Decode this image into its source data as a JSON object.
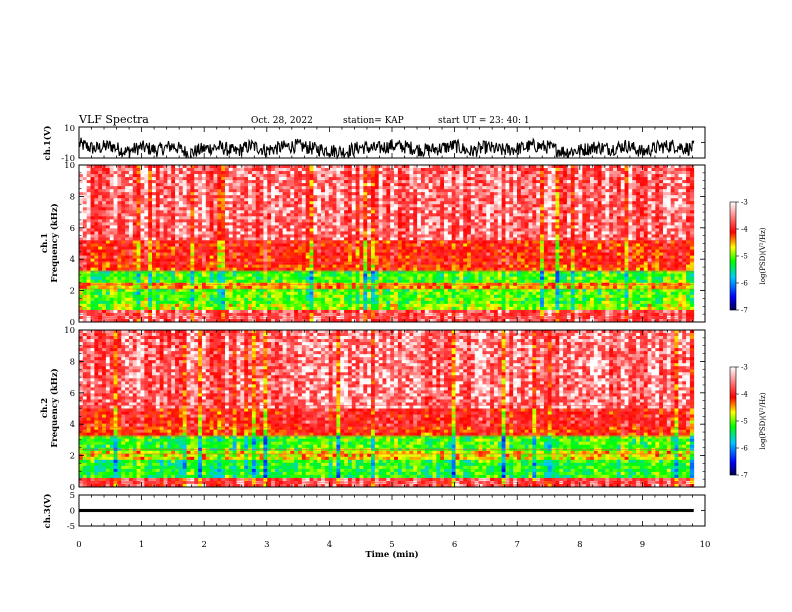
{
  "header": {
    "title": "VLF Spectra",
    "date": "Oct. 28, 2022",
    "station": "station= KAP",
    "start": "start UT =  23: 40: 1"
  },
  "chart_data": [
    {
      "type": "line",
      "panel": "ch1-waveform",
      "ylabel": "ch.1(V)",
      "ylim": [
        -10,
        10
      ],
      "yticks": [
        {
          "label": "10"
        },
        {
          "label": "-10"
        }
      ],
      "xlim": [
        0,
        10
      ],
      "series": [
        {
          "x": [
            0,
            0.25,
            0.5,
            0.75,
            1.0,
            1.25,
            1.5,
            1.75,
            2.0,
            2.25,
            2.5,
            2.75,
            3.0,
            3.25,
            3.5,
            3.75,
            4.0,
            4.25,
            4.5,
            4.75,
            5.0,
            5.25,
            5.5,
            5.75,
            6.0,
            6.25,
            6.5,
            6.75,
            7.0,
            7.25,
            7.5,
            7.75,
            8.0,
            8.25,
            8.5,
            8.75,
            9.0,
            9.25,
            9.5,
            9.75,
            9.82
          ],
          "y": [
            -1,
            -4,
            -2,
            -6,
            -3,
            -5,
            -2,
            -7,
            -4,
            -3,
            -6,
            -2,
            -5,
            -3,
            -2,
            -4,
            -5,
            -6,
            -3,
            -4,
            -2,
            -3,
            -5,
            -4,
            -2,
            -6,
            -3,
            -5,
            -4,
            -2,
            -3,
            -6,
            -5,
            -3,
            -4,
            -2,
            -6,
            -3,
            -2,
            -4,
            -3
          ]
        }
      ]
    },
    {
      "type": "heatmap",
      "panel": "ch1-spectrogram",
      "ylabel_top": "ch.1",
      "ylabel": "Frequency (kHz)",
      "ylim": [
        0,
        10
      ],
      "xlim": [
        0,
        10
      ],
      "yticks": [
        {
          "v": 0,
          "label": "0"
        },
        {
          "v": 2,
          "label": "2"
        },
        {
          "v": 4,
          "label": "4"
        },
        {
          "v": 6,
          "label": "6"
        },
        {
          "v": 8,
          "label": "8"
        },
        {
          "v": 10,
          "label": "10"
        }
      ],
      "data_end_min": 9.82,
      "bands": [
        {
          "from": 0,
          "to": 0.7,
          "level": -3.5
        },
        {
          "from": 0.7,
          "to": 1.2,
          "level": -4.8
        },
        {
          "from": 1.2,
          "to": 2.1,
          "level": -5.0
        },
        {
          "from": 2.1,
          "to": 2.5,
          "level": -4.4
        },
        {
          "from": 2.5,
          "to": 3.3,
          "level": -5.1
        },
        {
          "from": 3.3,
          "to": 3.7,
          "level": -4.0
        },
        {
          "from": 3.7,
          "to": 5.2,
          "level": -3.9
        },
        {
          "from": 5.2,
          "to": 10,
          "level": -3.4
        }
      ],
      "colorbar": {
        "label": "log(PSD)(V²/Hz)",
        "range": [
          -7,
          -3
        ],
        "ticks": [
          {
            "v": -3,
            "label": "-3"
          },
          {
            "v": -4,
            "label": "-4"
          },
          {
            "v": -5,
            "label": "-5"
          },
          {
            "v": -6,
            "label": "-6"
          },
          {
            "v": -7,
            "label": "-7"
          }
        ]
      }
    },
    {
      "type": "heatmap",
      "panel": "ch2-spectrogram",
      "ylabel_top": "ch.2",
      "ylabel": "Frequency (kHz)",
      "ylim": [
        0,
        10
      ],
      "xlim": [
        0,
        10
      ],
      "yticks": [
        {
          "v": 0,
          "label": "0"
        },
        {
          "v": 2,
          "label": "2"
        },
        {
          "v": 4,
          "label": "4"
        },
        {
          "v": 6,
          "label": "6"
        },
        {
          "v": 8,
          "label": "8"
        },
        {
          "v": 10,
          "label": "10"
        }
      ],
      "data_end_min": 9.82,
      "bands": [
        {
          "from": 0,
          "to": 0.6,
          "level": -3.6
        },
        {
          "from": 0.6,
          "to": 1.8,
          "level": -5.2
        },
        {
          "from": 1.8,
          "to": 2.3,
          "level": -4.6
        },
        {
          "from": 2.3,
          "to": 3.2,
          "level": -5.1
        },
        {
          "from": 3.2,
          "to": 3.8,
          "level": -4.0
        },
        {
          "from": 3.8,
          "to": 5.0,
          "level": -3.8
        },
        {
          "from": 5.0,
          "to": 10,
          "level": -3.4
        }
      ],
      "colorbar": {
        "label": "log(PSD)(V²/Hz)",
        "range": [
          -7,
          -3
        ],
        "ticks": [
          {
            "v": -3,
            "label": "-3"
          },
          {
            "v": -4,
            "label": "-4"
          },
          {
            "v": -5,
            "label": "-5"
          },
          {
            "v": -6,
            "label": "-6"
          },
          {
            "v": -7,
            "label": "-7"
          }
        ]
      }
    },
    {
      "type": "line",
      "panel": "ch3-waveform",
      "ylabel": "ch.3(V)",
      "ylim": [
        -5,
        5
      ],
      "yticks": [
        {
          "v": 5,
          "label": "5"
        },
        {
          "v": 0,
          "label": "0"
        },
        {
          "v": -5,
          "label": "-5"
        }
      ],
      "xlim": [
        0,
        10
      ],
      "series": [
        {
          "x": [
            0,
            9.82
          ],
          "y": [
            0,
            0
          ],
          "band": [
            -0.5,
            0.5
          ]
        }
      ]
    }
  ],
  "xaxis": {
    "label": "Time (min)",
    "ticks": [
      {
        "v": 0,
        "label": "0"
      },
      {
        "v": 1,
        "label": "1"
      },
      {
        "v": 2,
        "label": "2"
      },
      {
        "v": 3,
        "label": "3"
      },
      {
        "v": 4,
        "label": "4"
      },
      {
        "v": 5,
        "label": "5"
      },
      {
        "v": 6,
        "label": "6"
      },
      {
        "v": 7,
        "label": "7"
      },
      {
        "v": 8,
        "label": "8"
      },
      {
        "v": 9,
        "label": "9"
      },
      {
        "v": 10,
        "label": "10"
      }
    ]
  },
  "colors": {
    "frame": "#000000",
    "colormap": [
      "#000050",
      "#0000ff",
      "#00c8ff",
      "#00ff00",
      "#ffff00",
      "#ff0000",
      "#ffffff"
    ]
  }
}
